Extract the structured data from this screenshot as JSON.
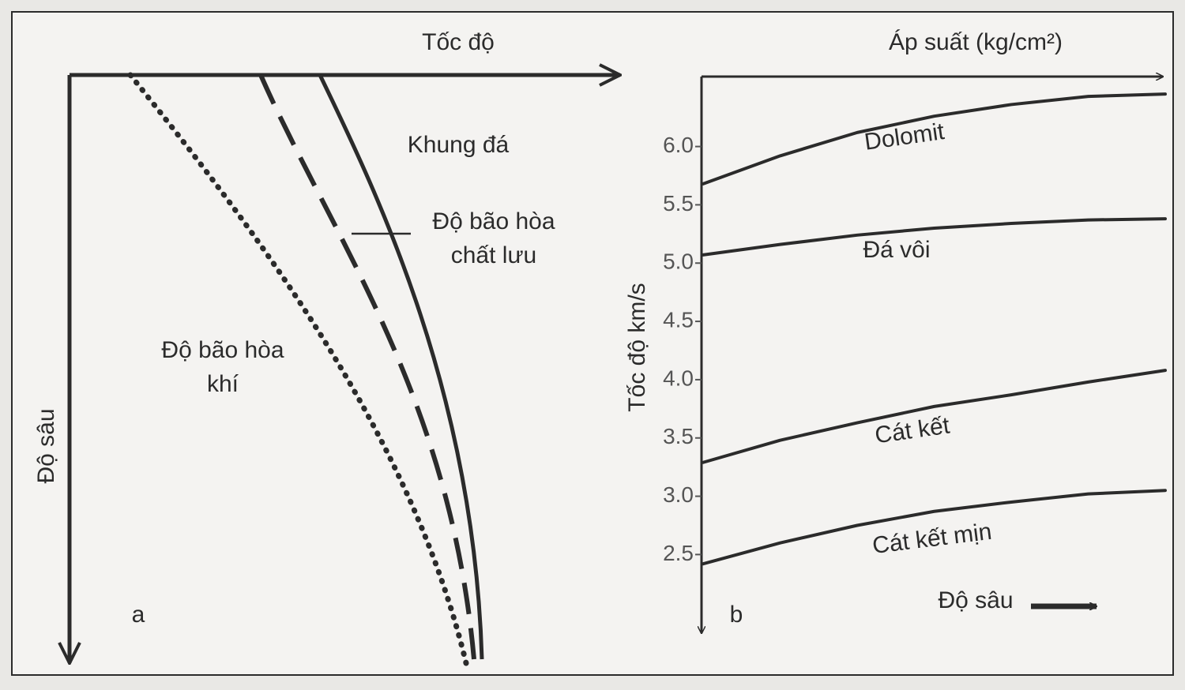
{
  "panel_a": {
    "x_axis_label": "Tốc độ",
    "y_axis_label": "Độ sâu",
    "curve_rock": "Khung đá",
    "curve_fluid": {
      "lines": [
        "Độ bão hòa",
        "chất lưu"
      ]
    },
    "curve_gas": {
      "lines": [
        "Độ bão hòa",
        "khí"
      ]
    },
    "panel_label": "a"
  },
  "chart_data": {
    "type": "line",
    "title": "Áp suất (kg/cm²)",
    "y_label": "Tốc độ km/s",
    "x_label": "Độ sâu",
    "panel_label": "b",
    "categories": [
      null,
      null,
      null,
      null,
      null,
      null,
      null
    ],
    "ylim": [
      1.9,
      6.6
    ],
    "yticks": [
      {
        "value": 2.5,
        "label": "2.5"
      },
      {
        "value": 3,
        "label": "3.0"
      },
      3.5,
      {
        "value": 4,
        "label": "4.0"
      },
      4.5,
      {
        "value": 5,
        "label": "5.0"
      },
      5.5,
      {
        "value": 6,
        "label": "6.0"
      }
    ],
    "series": [
      {
        "name": "Dolomit",
        "color": "#2b2b2b",
        "values": [
          5.68,
          5.92,
          6.12,
          6.26,
          6.36,
          6.43,
          6.45
        ]
      },
      {
        "name": "Đá vôi",
        "color": "#2b2b2b",
        "values": [
          5.07,
          5.16,
          5.24,
          5.3,
          5.34,
          5.37,
          5.38
        ]
      },
      {
        "name": "Cát kết",
        "color": "#2b2b2b",
        "values": [
          3.29,
          3.48,
          3.63,
          3.77,
          3.87,
          3.98,
          4.08
        ]
      },
      {
        "name": "Cát kết mịn",
        "color": "#2b2b2b",
        "values": [
          2.42,
          2.6,
          2.75,
          2.87,
          2.95,
          3.02,
          3.05
        ]
      }
    ]
  }
}
